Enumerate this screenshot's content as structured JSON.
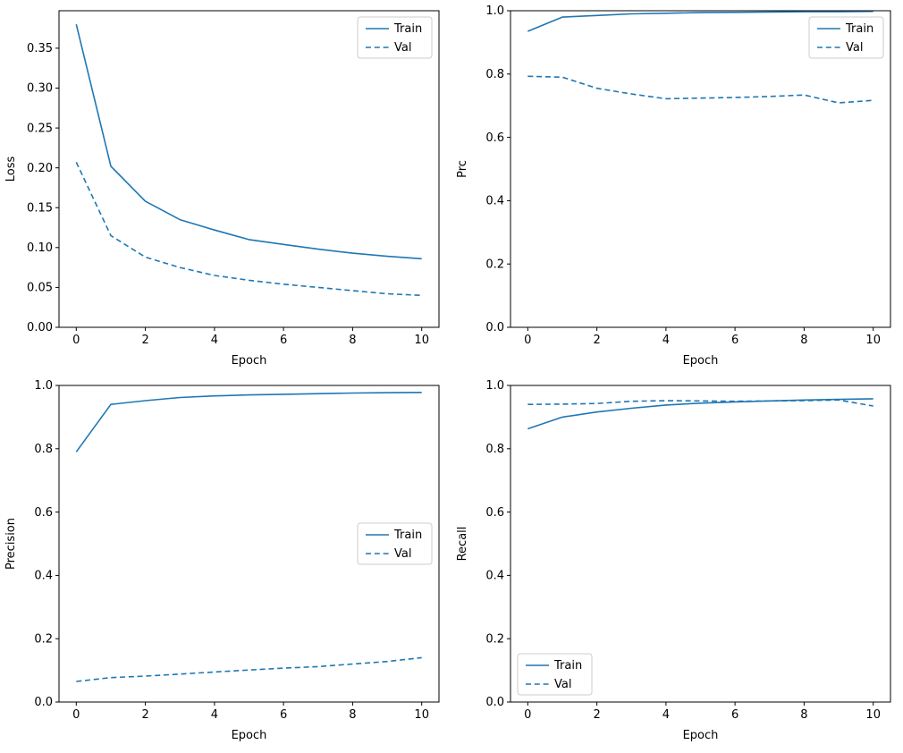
{
  "figure": {
    "background": "#ffffff",
    "line_color": "#1f77b4",
    "spine_color": "#000000",
    "legend_border_color": "#cccccc"
  },
  "chart_data": [
    {
      "id": "loss",
      "type": "line",
      "title": "",
      "xlabel": "Epoch",
      "ylabel": "Loss",
      "x": [
        0,
        1,
        2,
        3,
        4,
        5,
        6,
        7,
        8,
        9,
        10
      ],
      "xlim": [
        -0.5,
        10.5
      ],
      "ylim": [
        0.0,
        0.397
      ],
      "xticks": [
        0,
        2,
        4,
        6,
        8,
        10
      ],
      "xtick_labels": [
        "0",
        "2",
        "4",
        "6",
        "8",
        "10"
      ],
      "yticks": [
        0.0,
        0.05,
        0.1,
        0.15,
        0.2,
        0.25,
        0.3,
        0.35
      ],
      "ytick_labels": [
        "0.00",
        "0.05",
        "0.10",
        "0.15",
        "0.20",
        "0.25",
        "0.30",
        "0.35"
      ],
      "grid": false,
      "legend_loc": "upper right",
      "series": [
        {
          "name": "Train",
          "linestyle": "solid",
          "values": [
            0.38,
            0.202,
            0.158,
            0.135,
            0.122,
            0.11,
            0.104,
            0.098,
            0.093,
            0.089,
            0.086
          ]
        },
        {
          "name": "Val",
          "linestyle": "dashed",
          "values": [
            0.207,
            0.115,
            0.088,
            0.075,
            0.065,
            0.059,
            0.054,
            0.05,
            0.046,
            0.042,
            0.04
          ]
        }
      ]
    },
    {
      "id": "prc",
      "type": "line",
      "title": "",
      "xlabel": "Epoch",
      "ylabel": "Prc",
      "x": [
        0,
        1,
        2,
        3,
        4,
        5,
        6,
        7,
        8,
        9,
        10
      ],
      "xlim": [
        -0.5,
        10.5
      ],
      "ylim": [
        0.0,
        1.0
      ],
      "xticks": [
        0,
        2,
        4,
        6,
        8,
        10
      ],
      "xtick_labels": [
        "0",
        "2",
        "4",
        "6",
        "8",
        "10"
      ],
      "yticks": [
        0.0,
        0.2,
        0.4,
        0.6,
        0.8,
        1.0
      ],
      "ytick_labels": [
        "0.0",
        "0.2",
        "0.4",
        "0.6",
        "0.8",
        "1.0"
      ],
      "grid": false,
      "legend_loc": "upper right",
      "series": [
        {
          "name": "Train",
          "linestyle": "solid",
          "values": [
            0.935,
            0.98,
            0.985,
            0.99,
            0.992,
            0.994,
            0.995,
            0.996,
            0.997,
            0.997,
            0.998
          ]
        },
        {
          "name": "Val",
          "linestyle": "dashed",
          "values": [
            0.793,
            0.79,
            0.755,
            0.737,
            0.722,
            0.724,
            0.726,
            0.729,
            0.734,
            0.709,
            0.717
          ]
        }
      ]
    },
    {
      "id": "precision",
      "type": "line",
      "title": "",
      "xlabel": "Epoch",
      "ylabel": "Precision",
      "x": [
        0,
        1,
        2,
        3,
        4,
        5,
        6,
        7,
        8,
        9,
        10
      ],
      "xlim": [
        -0.5,
        10.5
      ],
      "ylim": [
        0.0,
        1.0
      ],
      "xticks": [
        0,
        2,
        4,
        6,
        8,
        10
      ],
      "xtick_labels": [
        "0",
        "2",
        "4",
        "6",
        "8",
        "10"
      ],
      "yticks": [
        0.0,
        0.2,
        0.4,
        0.6,
        0.8,
        1.0
      ],
      "ytick_labels": [
        "0.0",
        "0.2",
        "0.4",
        "0.6",
        "0.8",
        "1.0"
      ],
      "grid": false,
      "legend_loc": "center right",
      "series": [
        {
          "name": "Train",
          "linestyle": "solid",
          "values": [
            0.79,
            0.94,
            0.952,
            0.962,
            0.967,
            0.97,
            0.972,
            0.974,
            0.976,
            0.977,
            0.978
          ]
        },
        {
          "name": "Val",
          "linestyle": "dashed",
          "values": [
            0.065,
            0.077,
            0.082,
            0.088,
            0.095,
            0.101,
            0.107,
            0.112,
            0.12,
            0.128,
            0.14
          ]
        }
      ]
    },
    {
      "id": "recall",
      "type": "line",
      "title": "",
      "xlabel": "Epoch",
      "ylabel": "Recall",
      "x": [
        0,
        1,
        2,
        3,
        4,
        5,
        6,
        7,
        8,
        9,
        10
      ],
      "xlim": [
        -0.5,
        10.5
      ],
      "ylim": [
        0.0,
        1.0
      ],
      "xticks": [
        0,
        2,
        4,
        6,
        8,
        10
      ],
      "xtick_labels": [
        "0",
        "2",
        "4",
        "6",
        "8",
        "10"
      ],
      "yticks": [
        0.0,
        0.2,
        0.4,
        0.6,
        0.8,
        1.0
      ],
      "ytick_labels": [
        "0.0",
        "0.2",
        "0.4",
        "0.6",
        "0.8",
        "1.0"
      ],
      "grid": false,
      "legend_loc": "lower left",
      "series": [
        {
          "name": "Train",
          "linestyle": "solid",
          "values": [
            0.863,
            0.9,
            0.916,
            0.928,
            0.938,
            0.944,
            0.948,
            0.951,
            0.954,
            0.956,
            0.958
          ]
        },
        {
          "name": "Val",
          "linestyle": "dashed",
          "values": [
            0.94,
            0.941,
            0.943,
            0.95,
            0.952,
            0.951,
            0.95,
            0.951,
            0.952,
            0.954,
            0.935
          ]
        }
      ]
    }
  ]
}
